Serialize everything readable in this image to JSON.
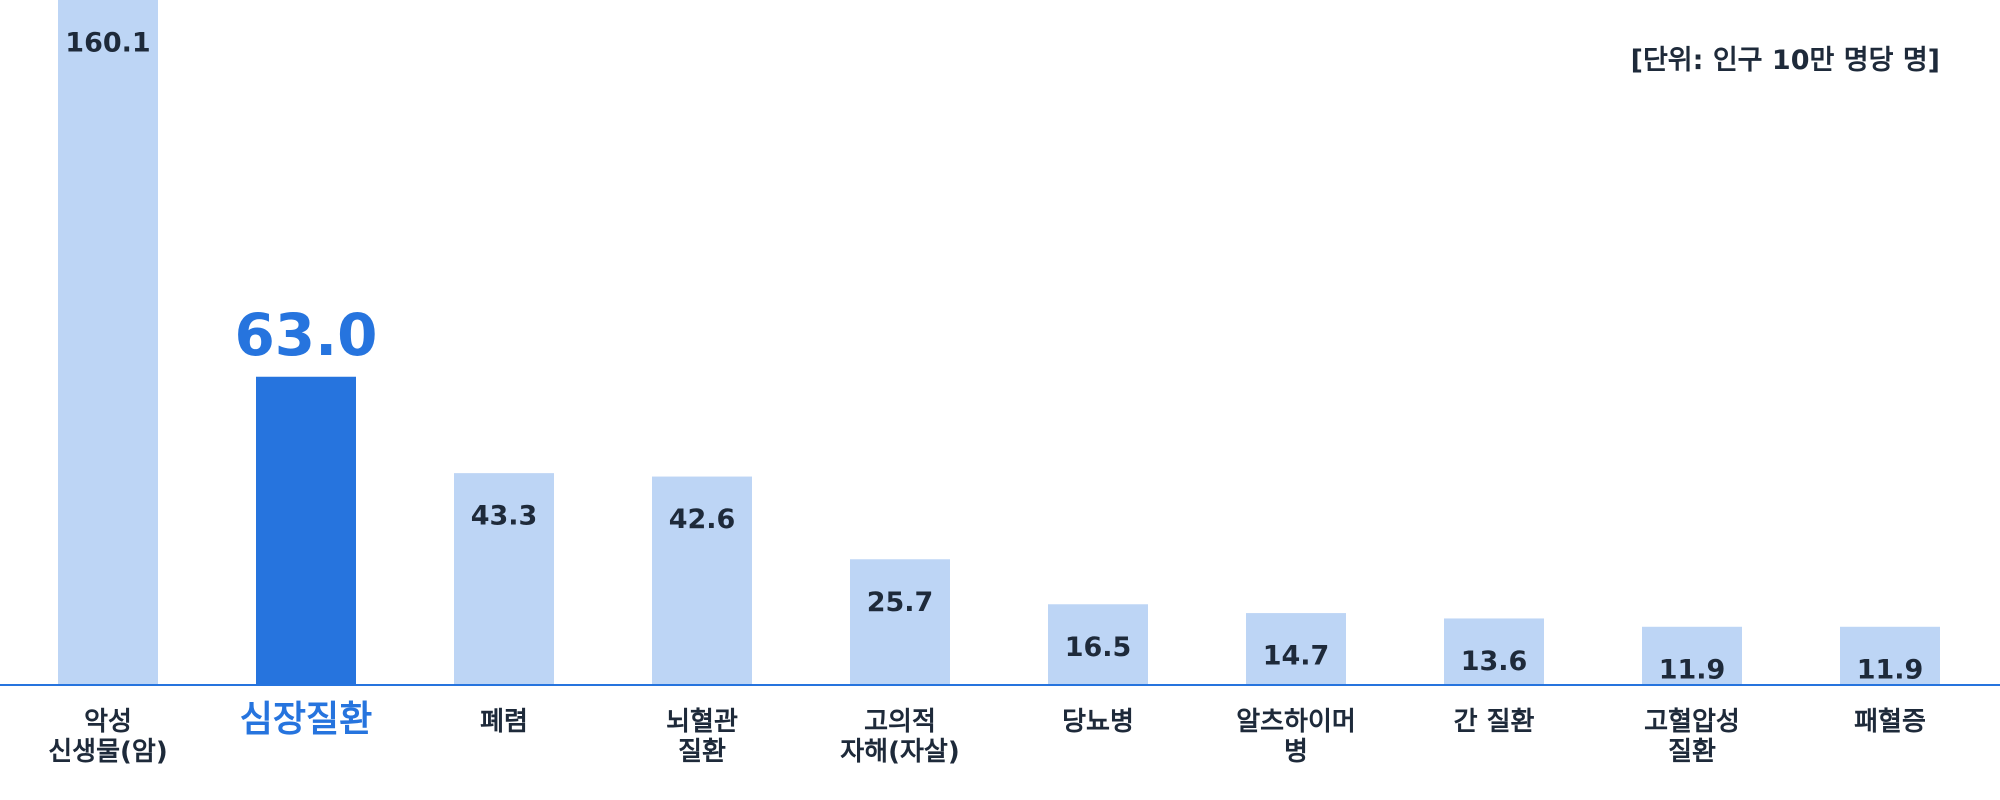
{
  "chart_data": {
    "type": "bar",
    "unit_note": "[단위: 인구 10만 명당 명]",
    "categories": [
      "악성\n신생물(암)",
      "심장질환",
      "폐렴",
      "뇌혈관\n질환",
      "고의적\n자해(자살)",
      "당뇨병",
      "알츠하이머\n병",
      "간 질환",
      "고혈압성\n질환",
      "패혈증"
    ],
    "values": [
      160.1,
      63.0,
      43.3,
      42.6,
      25.7,
      16.5,
      14.7,
      13.6,
      11.9,
      11.9
    ],
    "value_labels": [
      "160.1",
      "63.0",
      "43.3",
      "42.6",
      "25.7",
      "16.5",
      "14.7",
      "13.6",
      "11.9",
      "11.9"
    ],
    "color": "#bdd5f5",
    "highlight_color": "#2674de",
    "highlight_index": 1,
    "ylim": [
      0,
      140
    ]
  }
}
